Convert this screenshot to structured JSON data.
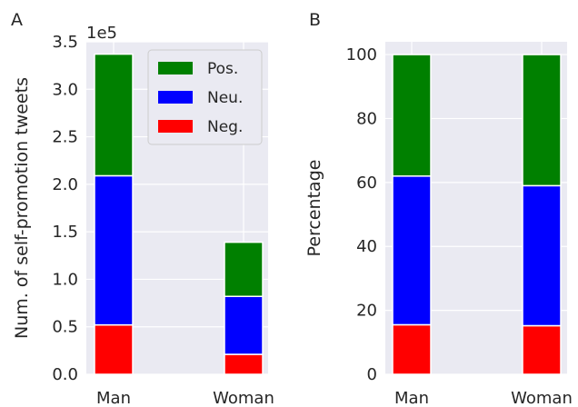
{
  "chart_data": [
    {
      "panel": "A",
      "type": "bar",
      "stacked": true,
      "categories": [
        "Man",
        "Woman"
      ],
      "series": [
        {
          "name": "Neg.",
          "color": "#ff0000",
          "values": [
            52000,
            21000
          ]
        },
        {
          "name": "Neu.",
          "color": "#0000ff",
          "values": [
            157000,
            61000
          ]
        },
        {
          "name": "Pos.",
          "color": "#008000",
          "values": [
            128000,
            57000
          ]
        }
      ],
      "ylabel": "Num. of self-promotion tweets",
      "y_offset_text": "1e5",
      "y_scale": 100000,
      "ylim": [
        0,
        350000
      ],
      "yticks": [
        0,
        50000,
        100000,
        150000,
        200000,
        250000,
        300000,
        350000
      ],
      "ytick_labels": [
        "0.0",
        "0.5",
        "1.0",
        "1.5",
        "2.0",
        "2.5",
        "3.0",
        "3.5"
      ],
      "legend": {
        "placement": "top-right",
        "entries": [
          "Pos.",
          "Neu.",
          "Neg."
        ]
      },
      "grid": true
    },
    {
      "panel": "B",
      "type": "bar",
      "stacked": true,
      "categories": [
        "Man",
        "Woman"
      ],
      "series": [
        {
          "name": "Neg.",
          "color": "#ff0000",
          "values": [
            15.5,
            15.2
          ]
        },
        {
          "name": "Neu.",
          "color": "#0000ff",
          "values": [
            46.5,
            43.8
          ]
        },
        {
          "name": "Pos.",
          "color": "#008000",
          "values": [
            38.0,
            41.0
          ]
        }
      ],
      "ylabel": "Percentage",
      "ylim": [
        0,
        104
      ],
      "yticks": [
        0,
        20,
        40,
        60,
        80,
        100
      ],
      "ytick_labels": [
        "0",
        "20",
        "40",
        "60",
        "80",
        "100"
      ],
      "grid": true
    }
  ]
}
